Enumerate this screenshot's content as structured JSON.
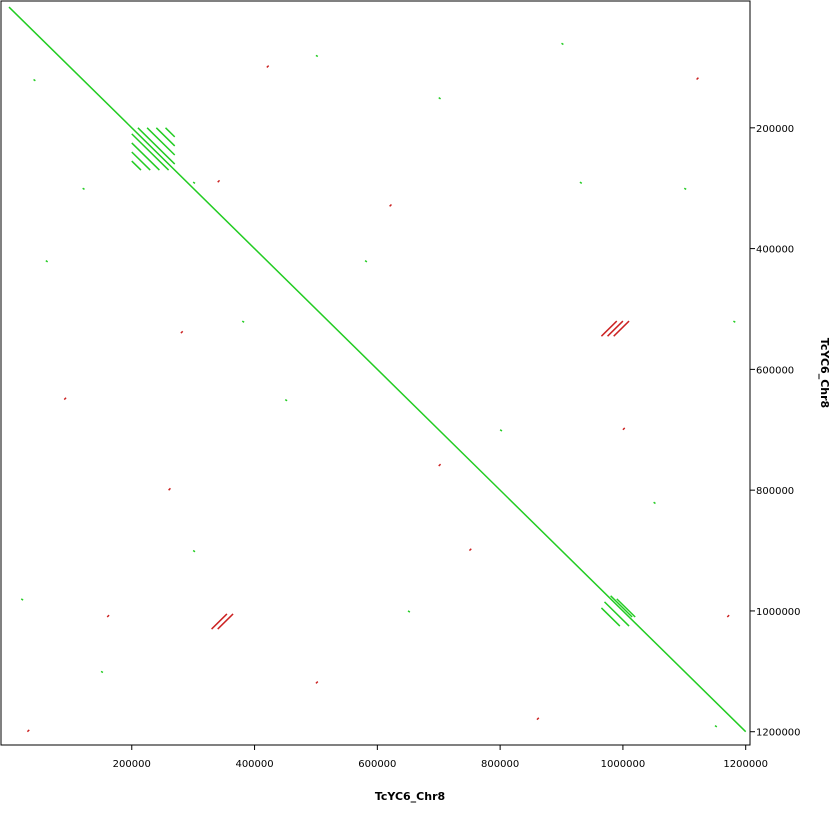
{
  "chart_data": {
    "type": "dotplot",
    "x_label": "TcYC6_Chr8",
    "y_label": "TcYC6_Chr8",
    "xlim": [
      -13000,
      1207000
    ],
    "ylim": [
      -10000,
      1222000
    ],
    "xticks": [
      200000,
      400000,
      600000,
      800000,
      1000000,
      1200000
    ],
    "yticks": [
      200000,
      400000,
      600000,
      800000,
      1000000,
      1200000
    ],
    "series": [
      {
        "color": "#22cc22",
        "segments": [
          [
            0,
            0,
            1200000,
            1200000
          ],
          [
            200000,
            210000,
            260000,
            270000
          ],
          [
            210000,
            200000,
            270000,
            260000
          ],
          [
            200000,
            225000,
            245000,
            270000
          ],
          [
            225000,
            200000,
            270000,
            245000
          ],
          [
            200000,
            240000,
            230000,
            270000
          ],
          [
            240000,
            200000,
            270000,
            230000
          ],
          [
            200000,
            255000,
            215000,
            270000
          ],
          [
            255000,
            200000,
            270000,
            215000
          ],
          [
            970000,
            985000,
            1010000,
            1025000
          ],
          [
            980000,
            975000,
            1015000,
            1010000
          ],
          [
            965000,
            995000,
            995000,
            1025000
          ],
          [
            990000,
            980000,
            1020000,
            1010000
          ],
          [
            300000,
            290000,
            303000,
            292000
          ],
          [
            40000,
            120000,
            43000,
            122000
          ],
          [
            120000,
            300000,
            123000,
            302000
          ],
          [
            60000,
            420000,
            63000,
            422000
          ],
          [
            500000,
            80000,
            503000,
            82000
          ],
          [
            700000,
            150000,
            703000,
            152000
          ],
          [
            900000,
            60000,
            903000,
            62000
          ],
          [
            1100000,
            300000,
            1103000,
            302000
          ],
          [
            450000,
            650000,
            453000,
            652000
          ],
          [
            800000,
            700000,
            803000,
            702000
          ],
          [
            300000,
            900000,
            303000,
            902000
          ],
          [
            150000,
            1100000,
            153000,
            1102000
          ],
          [
            650000,
            1000000,
            653000,
            1002000
          ],
          [
            1050000,
            820000,
            1053000,
            822000
          ],
          [
            20000,
            980000,
            23000,
            982000
          ],
          [
            580000,
            420000,
            583000,
            422000
          ],
          [
            1150000,
            1190000,
            1153000,
            1192000
          ],
          [
            930000,
            290000,
            933000,
            292000
          ],
          [
            380000,
            520000,
            383000,
            522000
          ],
          [
            1180000,
            520000,
            1183000,
            522000
          ]
        ]
      },
      {
        "color": "#cc2222",
        "segments": [
          [
            975000,
            545000,
            1000000,
            520000
          ],
          [
            985000,
            545000,
            1010000,
            520000
          ],
          [
            965000,
            545000,
            990000,
            520000
          ],
          [
            330000,
            1030000,
            355000,
            1005000
          ],
          [
            340000,
            1030000,
            365000,
            1005000
          ],
          [
            280000,
            540000,
            283000,
            537000
          ],
          [
            420000,
            100000,
            423000,
            97000
          ],
          [
            260000,
            800000,
            263000,
            797000
          ],
          [
            160000,
            1010000,
            163000,
            1007000
          ],
          [
            750000,
            900000,
            753000,
            897000
          ],
          [
            620000,
            330000,
            623000,
            327000
          ],
          [
            1000000,
            700000,
            1003000,
            697000
          ],
          [
            90000,
            650000,
            93000,
            647000
          ],
          [
            500000,
            1120000,
            503000,
            1117000
          ],
          [
            860000,
            1180000,
            863000,
            1177000
          ],
          [
            1120000,
            120000,
            1123000,
            117000
          ],
          [
            340000,
            290000,
            343000,
            287000
          ],
          [
            700000,
            760000,
            703000,
            757000
          ],
          [
            1170000,
            1010000,
            1173000,
            1007000
          ],
          [
            30000,
            1200000,
            33000,
            1197000
          ]
        ]
      }
    ]
  }
}
